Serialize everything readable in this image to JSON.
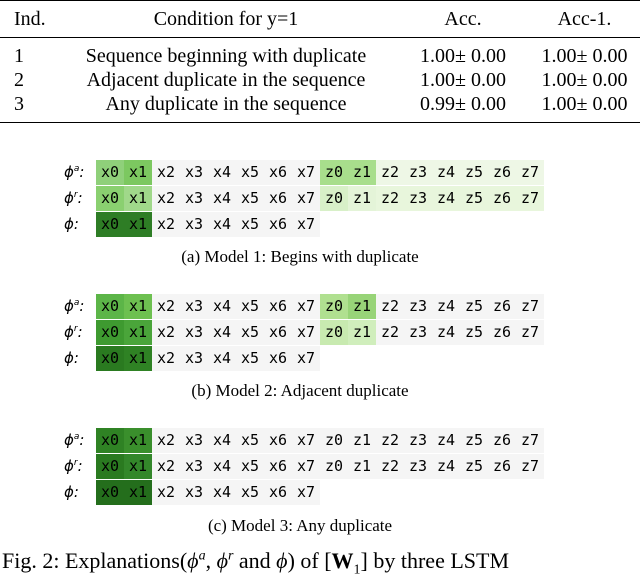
{
  "table": {
    "header": [
      "Ind.",
      "Condition for y=1",
      "Acc.",
      "Acc-1."
    ],
    "rows": [
      [
        "1",
        "Sequence beginning with duplicate",
        "1.00± 0.00",
        "1.00± 0.00"
      ],
      [
        "2",
        "Adjacent duplicate in the sequence",
        "1.00± 0.00",
        "1.00± 0.00"
      ],
      [
        "3",
        "Any duplicate in the sequence",
        "0.99± 0.00",
        "1.00± 0.00"
      ]
    ]
  },
  "figure": {
    "separator": ":",
    "panels": [
      {
        "caption": "(a) Model 1: Begins with duplicate",
        "rows": [
          {
            "symbol": "ϕ",
            "sup": "a",
            "tokens": [
              "x0",
              "x1",
              "x2",
              "x3",
              "x4",
              "x5",
              "x6",
              "x7",
              "z0",
              "z1",
              "z2",
              "z3",
              "z4",
              "z5",
              "z6",
              "z7"
            ],
            "colors": [
              "#8fd07a",
              "#7cc860",
              null,
              null,
              null,
              null,
              null,
              null,
              "#a8de8c",
              "#a8de8c",
              "#eef7e6",
              "#eef7e6",
              "#eef7e6",
              "#eef7e6",
              "#eef7e6",
              "#eef7e6"
            ]
          },
          {
            "symbol": "ϕ",
            "sup": "r",
            "tokens": [
              "x0",
              "x1",
              "x2",
              "x3",
              "x4",
              "x5",
              "x6",
              "x7",
              "z0",
              "z1",
              "z2",
              "z3",
              "z4",
              "z5",
              "z6",
              "z7"
            ],
            "colors": [
              "#8ad070",
              "#a0d88a",
              null,
              null,
              null,
              null,
              null,
              null,
              "#d8f0c8",
              "#e4f4d8",
              "#e8f6dc",
              "#e8f6dc",
              "#e8f6dc",
              "#e8f6dc",
              "#e8f6dc",
              "#e8f6dc"
            ]
          },
          {
            "symbol": "ϕ",
            "sup": null,
            "tokens": [
              "x0",
              "x1",
              "x2",
              "x3",
              "x4",
              "x5",
              "x6",
              "x7"
            ],
            "colors": [
              "#2e7d25",
              "#2e7d25",
              null,
              null,
              null,
              null,
              null,
              null
            ]
          }
        ]
      },
      {
        "caption": "(b) Model 2: Adjacent duplicate",
        "rows": [
          {
            "symbol": "ϕ",
            "sup": "a",
            "tokens": [
              "x0",
              "x1",
              "x2",
              "x3",
              "x4",
              "x5",
              "x6",
              "x7",
              "z0",
              "z1",
              "z2",
              "z3",
              "z4",
              "z5",
              "z6",
              "z7"
            ],
            "colors": [
              "#5cb548",
              "#6dc050",
              null,
              null,
              null,
              null,
              null,
              null,
              "#b0e090",
              "#98d478",
              null,
              null,
              null,
              null,
              null,
              null
            ]
          },
          {
            "symbol": "ϕ",
            "sup": "r",
            "tokens": [
              "x0",
              "x1",
              "x2",
              "x3",
              "x4",
              "x5",
              "x6",
              "x7",
              "z0",
              "z1",
              "z2",
              "z3",
              "z4",
              "z5",
              "z6",
              "z7"
            ],
            "colors": [
              "#3e9a30",
              "#4aa53a",
              null,
              null,
              null,
              null,
              null,
              null,
              "#c8eab0",
              "#d0eebc",
              null,
              null,
              null,
              null,
              null,
              null
            ]
          },
          {
            "symbol": "ϕ",
            "sup": null,
            "tokens": [
              "x0",
              "x1",
              "x2",
              "x3",
              "x4",
              "x5",
              "x6",
              "x7"
            ],
            "colors": [
              "#2a7a20",
              "#2f8224",
              null,
              null,
              null,
              null,
              null,
              null
            ]
          }
        ]
      },
      {
        "caption": "(c) Model 3: Any duplicate",
        "rows": [
          {
            "symbol": "ϕ",
            "sup": "a",
            "tokens": [
              "x0",
              "x1",
              "x2",
              "x3",
              "x4",
              "x5",
              "x6",
              "x7",
              "z0",
              "z1",
              "z2",
              "z3",
              "z4",
              "z5",
              "z6",
              "z7"
            ],
            "colors": [
              "#2f8224",
              "#3a8f2c",
              null,
              null,
              null,
              null,
              null,
              null,
              null,
              null,
              null,
              null,
              null,
              null,
              null,
              null
            ]
          },
          {
            "symbol": "ϕ",
            "sup": "r",
            "tokens": [
              "x0",
              "x1",
              "x2",
              "x3",
              "x4",
              "x5",
              "x6",
              "x7",
              "z0",
              "z1",
              "z2",
              "z3",
              "z4",
              "z5",
              "z6",
              "z7"
            ],
            "colors": [
              "#2a7a20",
              "#33872a",
              null,
              null,
              null,
              null,
              null,
              null,
              null,
              null,
              null,
              null,
              null,
              null,
              null,
              null
            ]
          },
          {
            "symbol": "ϕ",
            "sup": null,
            "tokens": [
              "x0",
              "x1",
              "x2",
              "x3",
              "x4",
              "x5",
              "x6",
              "x7"
            ],
            "colors": [
              "#246e1c",
              "#246e1c",
              null,
              null,
              null,
              null,
              null,
              null
            ]
          }
        ]
      }
    ]
  },
  "caption": {
    "label": "Fig. 2:",
    "parts": [
      "Explanations(",
      {
        "math": "ϕ",
        "sup": "a"
      },
      ", ",
      {
        "math": "ϕ",
        "sup": "r"
      },
      " and ",
      {
        "math": "ϕ"
      },
      ") of [",
      {
        "bold": "W",
        "sub": "1"
      },
      "] by three LSTM"
    ]
  }
}
